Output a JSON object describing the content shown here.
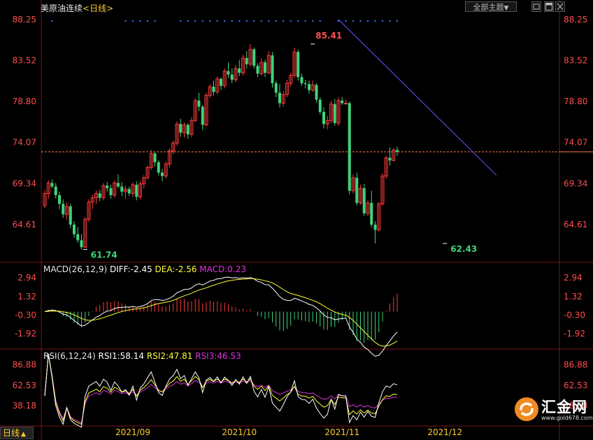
{
  "header": {
    "symbol": "美原油连续",
    "period_prefix": "<",
    "period": "日线",
    "period_suffix": ">",
    "theme_button": "全部主题",
    "theme_arrow": "▼"
  },
  "bottom_bar": {
    "period_label": "日线",
    "arrow": "▲"
  },
  "watermark": {
    "brand": "汇金网",
    "site": "www.gold678.com"
  },
  "colors": {
    "up": "#ff3b3b",
    "down": "#3fd47a",
    "axis_text": "#ff4d4d",
    "trend": "#7b4dff",
    "last_price": "#ff7b4a"
  },
  "chart_data": [
    {
      "type": "candlestick",
      "panel": "price",
      "y_ticks": [
        "88.25",
        "83.52",
        "78.80",
        "74.07",
        "69.34",
        "64.61"
      ],
      "y_tick_values": [
        88.25,
        83.52,
        78.8,
        74.07,
        69.34,
        64.61
      ],
      "ylim": [
        60.5,
        89.2
      ],
      "x_tick_labels": [
        "2021/09",
        "2021/10",
        "2021/11",
        "2021/12"
      ],
      "x_tick_index": [
        24,
        53,
        81,
        109
      ],
      "annotations": [
        {
          "text": "85.41",
          "value": 85.41,
          "index": 73,
          "kind": "high"
        },
        {
          "text": "61.74",
          "value": 61.74,
          "index": 11,
          "kind": "low"
        },
        {
          "text": "62.43",
          "value": 62.43,
          "index": 109,
          "kind": "low"
        }
      ],
      "last_price": 73.0,
      "trend_line": [
        {
          "index": 80,
          "value": 88.25
        },
        {
          "index": 123,
          "value": 70.3
        }
      ],
      "ohlc": [
        [
          66.8,
          68.6,
          66.5,
          68.2
        ],
        [
          68.2,
          69.7,
          67.6,
          69.4
        ],
        [
          69.4,
          69.8,
          68.8,
          69.0
        ],
        [
          69.0,
          69.4,
          67.6,
          68.0
        ],
        [
          68.0,
          68.4,
          66.4,
          67.0
        ],
        [
          67.0,
          67.5,
          65.4,
          65.8
        ],
        [
          65.8,
          67.2,
          65.2,
          66.7
        ],
        [
          66.7,
          67.0,
          64.2,
          64.6
        ],
        [
          64.6,
          65.0,
          63.1,
          63.5
        ],
        [
          63.5,
          64.3,
          62.5,
          62.8
        ],
        [
          62.8,
          63.5,
          61.74,
          62.0
        ],
        [
          62.0,
          65.5,
          61.9,
          65.2
        ],
        [
          65.2,
          67.5,
          64.9,
          67.2
        ],
        [
          67.2,
          68.0,
          66.4,
          67.7
        ],
        [
          67.7,
          68.5,
          67.0,
          68.2
        ],
        [
          68.2,
          68.6,
          67.3,
          67.7
        ],
        [
          67.7,
          69.4,
          67.4,
          69.1
        ],
        [
          69.1,
          69.5,
          68.4,
          68.8
        ],
        [
          68.8,
          69.2,
          67.6,
          68.0
        ],
        [
          68.0,
          69.7,
          67.7,
          69.4
        ],
        [
          69.4,
          70.4,
          68.8,
          69.0
        ],
        [
          69.0,
          69.5,
          67.9,
          68.4
        ],
        [
          68.4,
          69.1,
          67.6,
          68.7
        ],
        [
          68.7,
          69.0,
          67.9,
          68.2
        ],
        [
          68.2,
          69.5,
          67.8,
          69.2
        ],
        [
          69.2,
          69.6,
          67.4,
          67.8
        ],
        [
          67.8,
          69.6,
          67.5,
          69.3
        ],
        [
          69.3,
          70.3,
          68.8,
          70.0
        ],
        [
          70.0,
          71.4,
          69.8,
          71.2
        ],
        [
          71.2,
          73.2,
          70.9,
          72.8
        ],
        [
          72.8,
          73.0,
          71.3,
          71.8
        ],
        [
          71.8,
          72.0,
          70.3,
          70.6
        ],
        [
          70.6,
          71.0,
          69.6,
          70.2
        ],
        [
          70.2,
          71.9,
          69.9,
          71.6
        ],
        [
          71.6,
          73.4,
          71.2,
          73.1
        ],
        [
          73.1,
          74.3,
          72.7,
          74.0
        ],
        [
          74.0,
          76.5,
          73.7,
          76.2
        ],
        [
          76.2,
          76.8,
          74.7,
          75.2
        ],
        [
          75.2,
          76.4,
          74.6,
          76.1
        ],
        [
          76.1,
          76.3,
          74.5,
          75.0
        ],
        [
          75.0,
          77.0,
          74.7,
          76.6
        ],
        [
          76.6,
          79.2,
          76.4,
          78.9
        ],
        [
          78.9,
          79.8,
          77.7,
          78.2
        ],
        [
          78.2,
          78.4,
          75.5,
          76.1
        ],
        [
          76.1,
          79.8,
          75.9,
          79.5
        ],
        [
          79.5,
          80.8,
          79.2,
          80.5
        ],
        [
          80.5,
          81.2,
          79.5,
          79.9
        ],
        [
          79.9,
          81.7,
          79.6,
          81.4
        ],
        [
          81.4,
          81.6,
          80.1,
          80.6
        ],
        [
          80.6,
          82.6,
          80.3,
          82.3
        ],
        [
          82.3,
          83.3,
          81.5,
          81.9
        ],
        [
          81.9,
          82.6,
          80.9,
          81.3
        ],
        [
          81.3,
          83.0,
          81.0,
          82.6
        ],
        [
          82.6,
          83.6,
          81.7,
          82.1
        ],
        [
          82.1,
          84.2,
          81.8,
          83.8
        ],
        [
          83.8,
          84.6,
          82.6,
          83.1
        ],
        [
          83.1,
          85.41,
          82.8,
          84.8
        ],
        [
          84.8,
          85.0,
          82.6,
          82.9
        ],
        [
          82.9,
          83.2,
          81.6,
          82.0
        ],
        [
          82.0,
          83.8,
          81.8,
          83.3
        ],
        [
          83.3,
          83.6,
          81.6,
          82.1
        ],
        [
          82.1,
          84.6,
          81.9,
          84.1
        ],
        [
          84.1,
          84.5,
          80.4,
          80.9
        ],
        [
          80.9,
          81.2,
          79.3,
          79.8
        ],
        [
          79.8,
          80.8,
          78.1,
          78.6
        ],
        [
          78.6,
          80.0,
          78.2,
          79.6
        ],
        [
          79.6,
          81.3,
          79.3,
          80.9
        ],
        [
          80.9,
          82.1,
          80.5,
          81.8
        ],
        [
          81.8,
          85.0,
          81.5,
          84.5
        ],
        [
          84.5,
          84.8,
          81.2,
          81.6
        ],
        [
          81.6,
          82.0,
          80.6,
          80.9
        ],
        [
          80.9,
          81.3,
          80.3,
          80.8
        ],
        [
          80.8,
          81.2,
          79.7,
          80.1
        ],
        [
          80.1,
          81.2,
          79.9,
          80.7
        ],
        [
          80.7,
          80.9,
          78.7,
          79.0
        ],
        [
          79.0,
          79.3,
          77.3,
          77.6
        ],
        [
          77.6,
          78.1,
          75.7,
          76.2
        ],
        [
          76.2,
          77.1,
          75.6,
          76.6
        ],
        [
          76.6,
          78.9,
          76.3,
          78.5
        ],
        [
          78.5,
          79.1,
          76.0,
          76.3
        ],
        [
          76.3,
          79.3,
          76.0,
          78.9
        ],
        [
          78.9,
          79.3,
          78.4,
          78.6
        ],
        [
          78.6,
          79.0,
          78.4,
          78.6
        ],
        [
          78.6,
          78.8,
          68.1,
          68.5
        ],
        [
          68.5,
          70.4,
          68.2,
          70.0
        ],
        [
          70.0,
          70.6,
          66.8,
          67.1
        ],
        [
          67.1,
          69.2,
          66.9,
          68.8
        ],
        [
          68.8,
          69.3,
          65.6,
          65.9
        ],
        [
          65.9,
          67.4,
          65.6,
          67.1
        ],
        [
          67.1,
          68.5,
          64.3,
          64.6
        ],
        [
          64.6,
          65.0,
          62.43,
          64.0
        ],
        [
          64.0,
          67.2,
          63.8,
          67.0
        ],
        [
          67.0,
          70.5,
          66.8,
          70.2
        ],
        [
          70.2,
          72.5,
          69.9,
          72.3
        ],
        [
          72.3,
          73.5,
          71.4,
          72.0
        ],
        [
          72.0,
          73.4,
          71.9,
          73.2
        ],
        [
          73.2,
          73.6,
          72.5,
          73.0
        ]
      ]
    },
    {
      "type": "line",
      "panel": "macd",
      "label_prefix": "MACD(26,12,9)",
      "labels": [
        {
          "name": "DIFF",
          "text": "DIFF:-2.45",
          "value": -2.45,
          "color": "#ffffff"
        },
        {
          "name": "DEA",
          "text": "DEA:-2.56",
          "value": -2.56,
          "color": "#ffff33"
        },
        {
          "name": "MACD",
          "text": "MACD:0.23",
          "value": 0.23,
          "color": "#dd33dd"
        }
      ],
      "y_ticks": [
        "2.94",
        "1.32",
        "-0.30",
        "-1.92"
      ],
      "y_tick_values": [
        2.94,
        1.32,
        -0.3,
        -1.92
      ],
      "ylim": [
        -3.2,
        3.5
      ]
    },
    {
      "type": "line",
      "panel": "rsi",
      "label_prefix": "RSI(6,12,24)",
      "labels": [
        {
          "name": "RSI1",
          "text": "RSI1:58.14",
          "value": 58.14,
          "color": "#ffffff"
        },
        {
          "name": "RSI2",
          "text": "RSI2:47.81",
          "value": 47.81,
          "color": "#ffff33"
        },
        {
          "name": "RSI3",
          "text": "RSI3:46.53",
          "value": 46.53,
          "color": "#dd33dd"
        }
      ],
      "y_ticks": [
        "86.88",
        "62.53",
        "38.18"
      ],
      "y_tick_values": [
        86.88,
        62.53,
        38.18
      ],
      "ylim": [
        15,
        95
      ]
    }
  ]
}
